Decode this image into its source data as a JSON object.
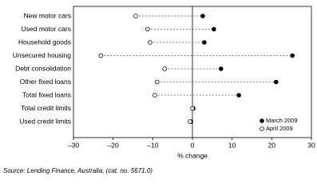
{
  "chart_data": {
    "type": "dot",
    "orientation": "horizontal",
    "categories": [
      "New motor cars",
      "Used motor cars",
      "Household goods",
      "Unsecured housing",
      "Debt consolidation",
      "Other fixed loans",
      "Total fixed loans",
      "Total credit limits",
      "Used credit limits"
    ],
    "series": [
      {
        "name": "March 2009",
        "color": "#000000",
        "marker": "filled",
        "values": [
          2.6,
          5.4,
          3.0,
          25.2,
          7.2,
          21.1,
          11.7,
          0.2,
          -0.4
        ]
      },
      {
        "name": "April 2009",
        "color": "#000000",
        "marker": "open",
        "values": [
          -14.3,
          -11.3,
          -10.7,
          -23.1,
          -7.0,
          -8.9,
          -9.5,
          0.0,
          -0.6
        ]
      }
    ],
    "xlim": [
      -30,
      30
    ],
    "xticks": [
      {
        "value": -30,
        "label": "–30"
      },
      {
        "value": -20,
        "label": "–20"
      },
      {
        "value": -10,
        "label": "–10"
      },
      0,
      10,
      20,
      30
    ],
    "x_label": "% change",
    "legend": "lower right",
    "source": "Source: Lending Finance, Australia, (cat. no. 5671.0)"
  }
}
